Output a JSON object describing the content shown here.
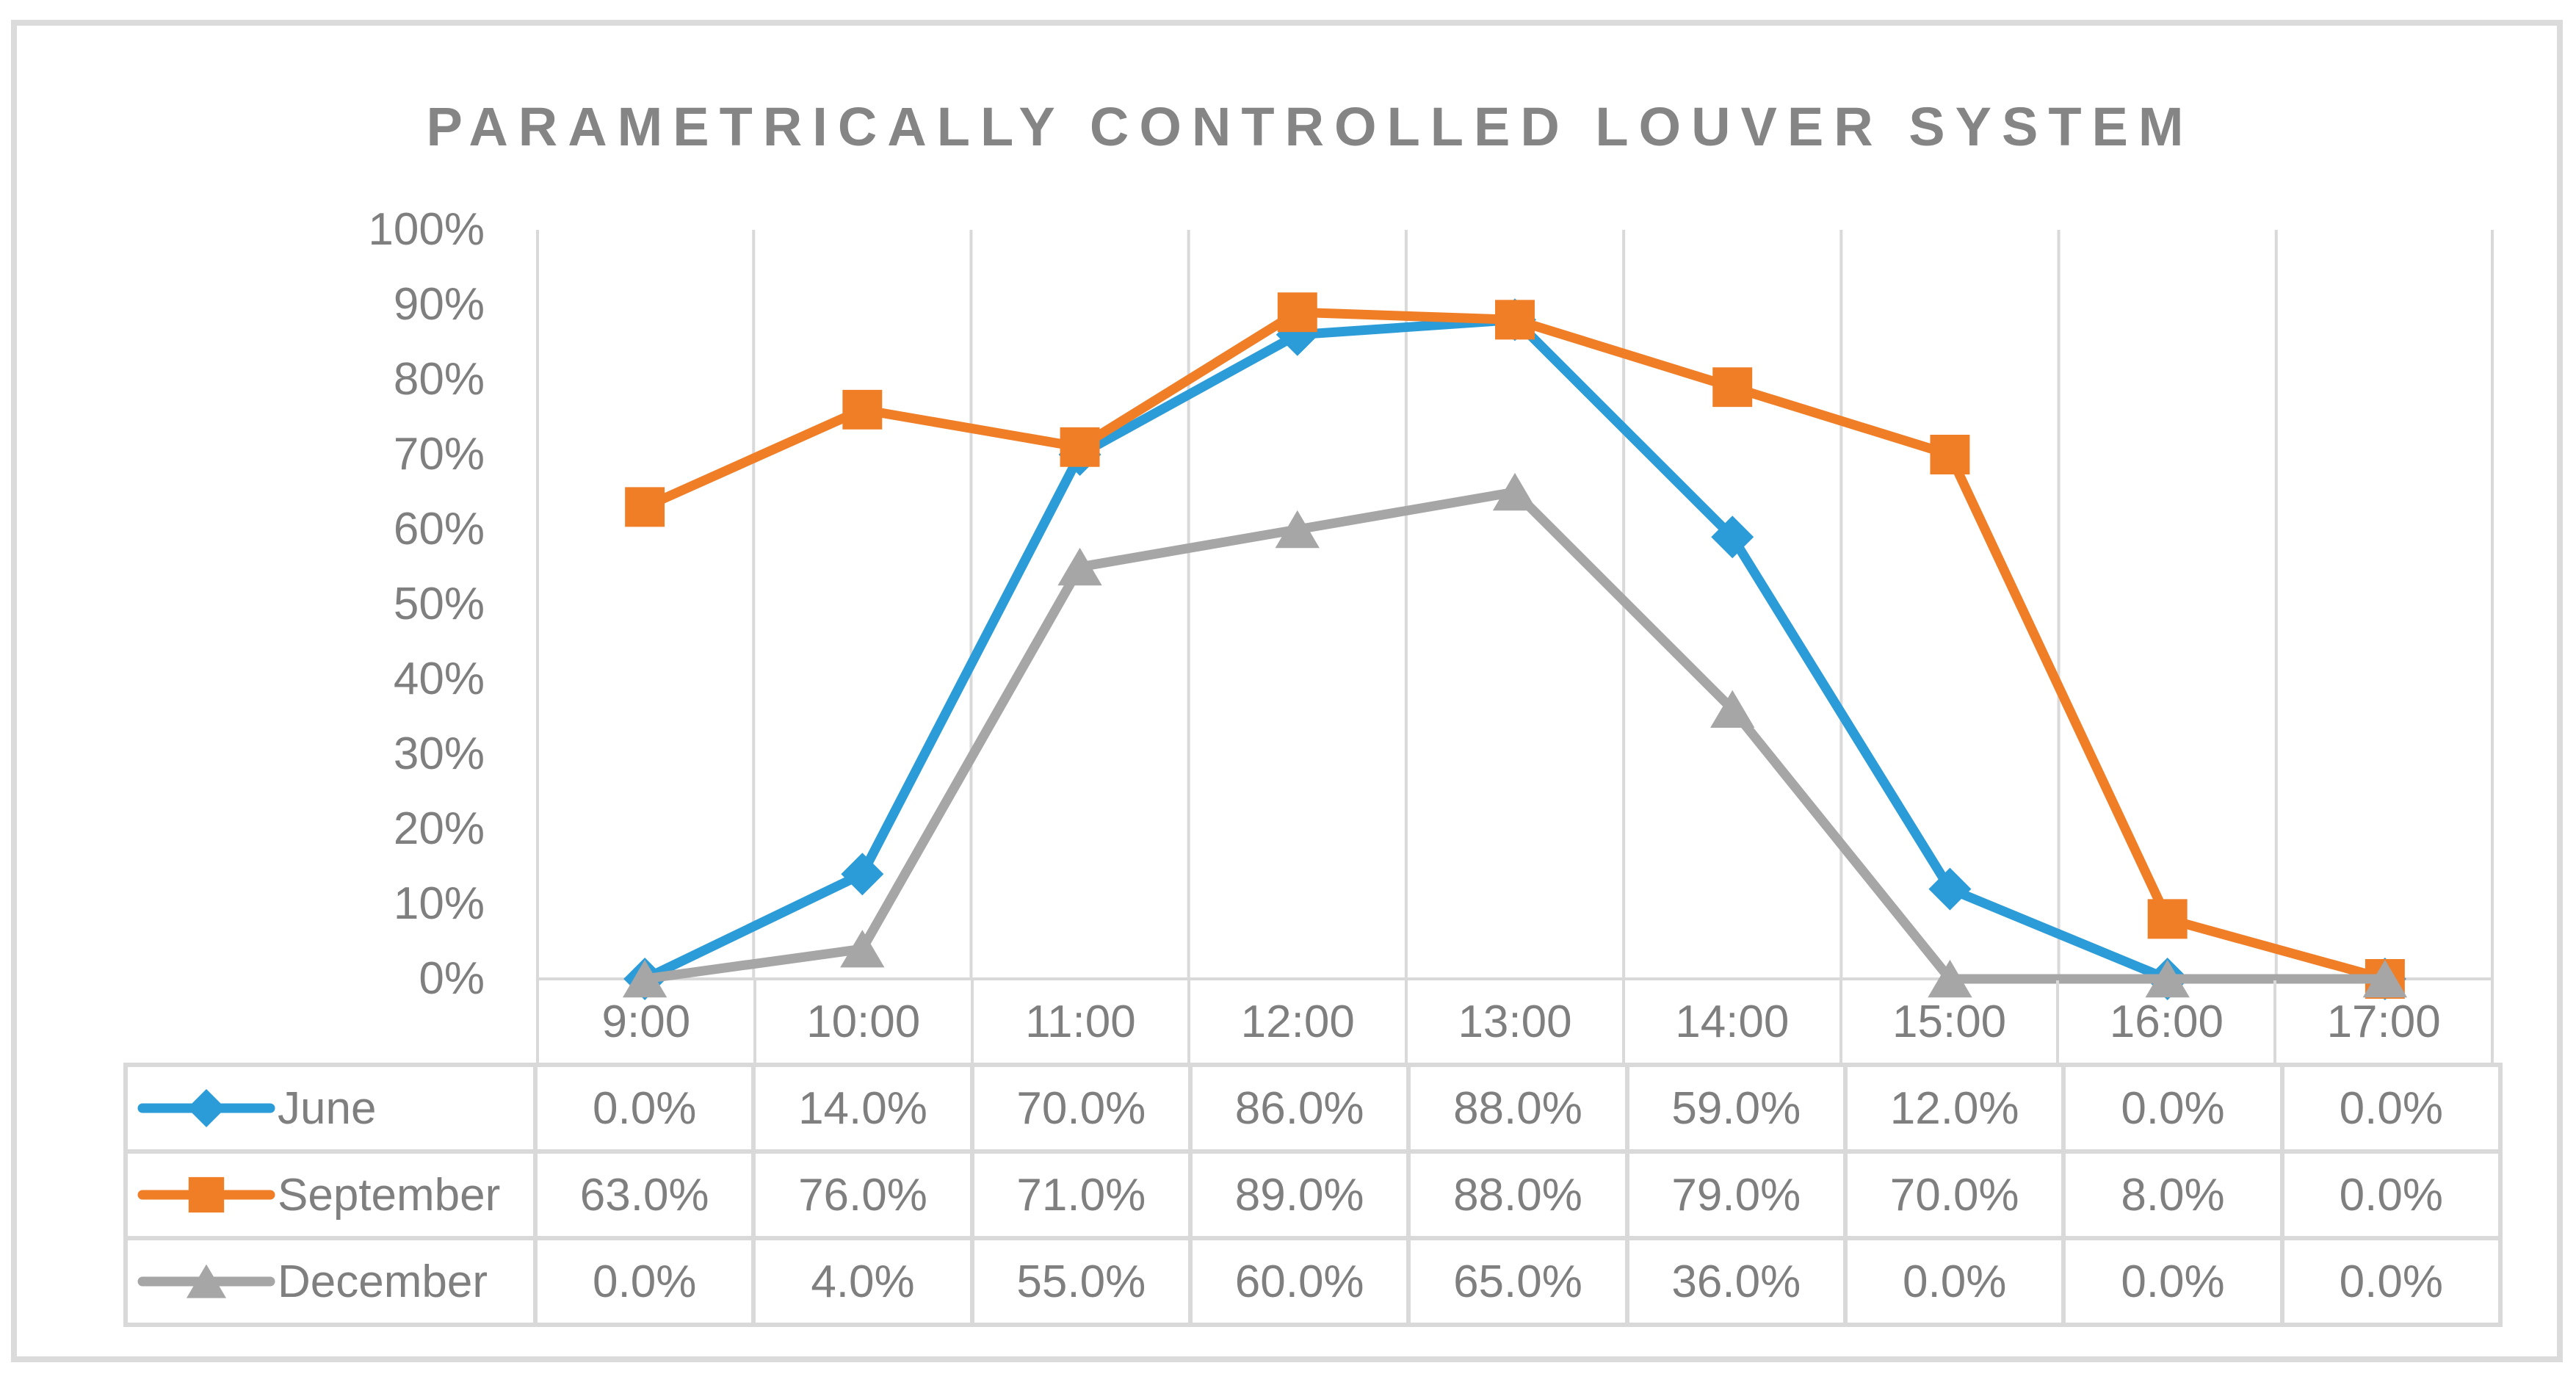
{
  "title": "PARAMETRICALLY CONTROLLED LOUVER SYSTEM",
  "colors": {
    "june": "#2B9CD8",
    "september": "#F07E27",
    "december": "#A6A6A6",
    "grid": "#D9D9D9",
    "frame_border": "#DBDBDB",
    "axis_text": "#7F7F7F",
    "title_text": "#858585"
  },
  "chart_data": {
    "type": "line",
    "title": "PARAMETRICALLY CONTROLLED LOUVER SYSTEM",
    "categories": [
      "9:00",
      "10:00",
      "11:00",
      "12:00",
      "13:00",
      "14:00",
      "15:00",
      "16:00",
      "17:00"
    ],
    "series": [
      {
        "name": "June",
        "marker": "diamond",
        "color": "#2B9CD8",
        "values": [
          0,
          14,
          70,
          86,
          88,
          59,
          12,
          0,
          0
        ]
      },
      {
        "name": "September",
        "marker": "square",
        "color": "#F07E27",
        "values": [
          63,
          76,
          71,
          89,
          88,
          79,
          70,
          8,
          0
        ]
      },
      {
        "name": "December",
        "marker": "triangle",
        "color": "#A6A6A6",
        "values": [
          0,
          4,
          55,
          60,
          65,
          36,
          0,
          0,
          0
        ]
      }
    ],
    "xlabel": "",
    "ylabel": "",
    "ylim": [
      0,
      100
    ],
    "ytick_step": 10,
    "ytick_labels": [
      "0%",
      "10%",
      "20%",
      "30%",
      "40%",
      "50%",
      "60%",
      "70%",
      "80%",
      "90%",
      "100%"
    ],
    "grid": "vertical-major-only",
    "legend_position": "data-table-left"
  },
  "table": {
    "rows": [
      {
        "label": "June",
        "values": [
          "0.0%",
          "14.0%",
          "70.0%",
          "86.0%",
          "88.0%",
          "59.0%",
          "12.0%",
          "0.0%",
          "0.0%"
        ]
      },
      {
        "label": "September",
        "values": [
          "63.0%",
          "76.0%",
          "71.0%",
          "89.0%",
          "88.0%",
          "79.0%",
          "70.0%",
          "8.0%",
          "0.0%"
        ]
      },
      {
        "label": "December",
        "values": [
          "0.0%",
          "4.0%",
          "55.0%",
          "60.0%",
          "65.0%",
          "36.0%",
          "0.0%",
          "0.0%",
          "0.0%"
        ]
      }
    ]
  }
}
